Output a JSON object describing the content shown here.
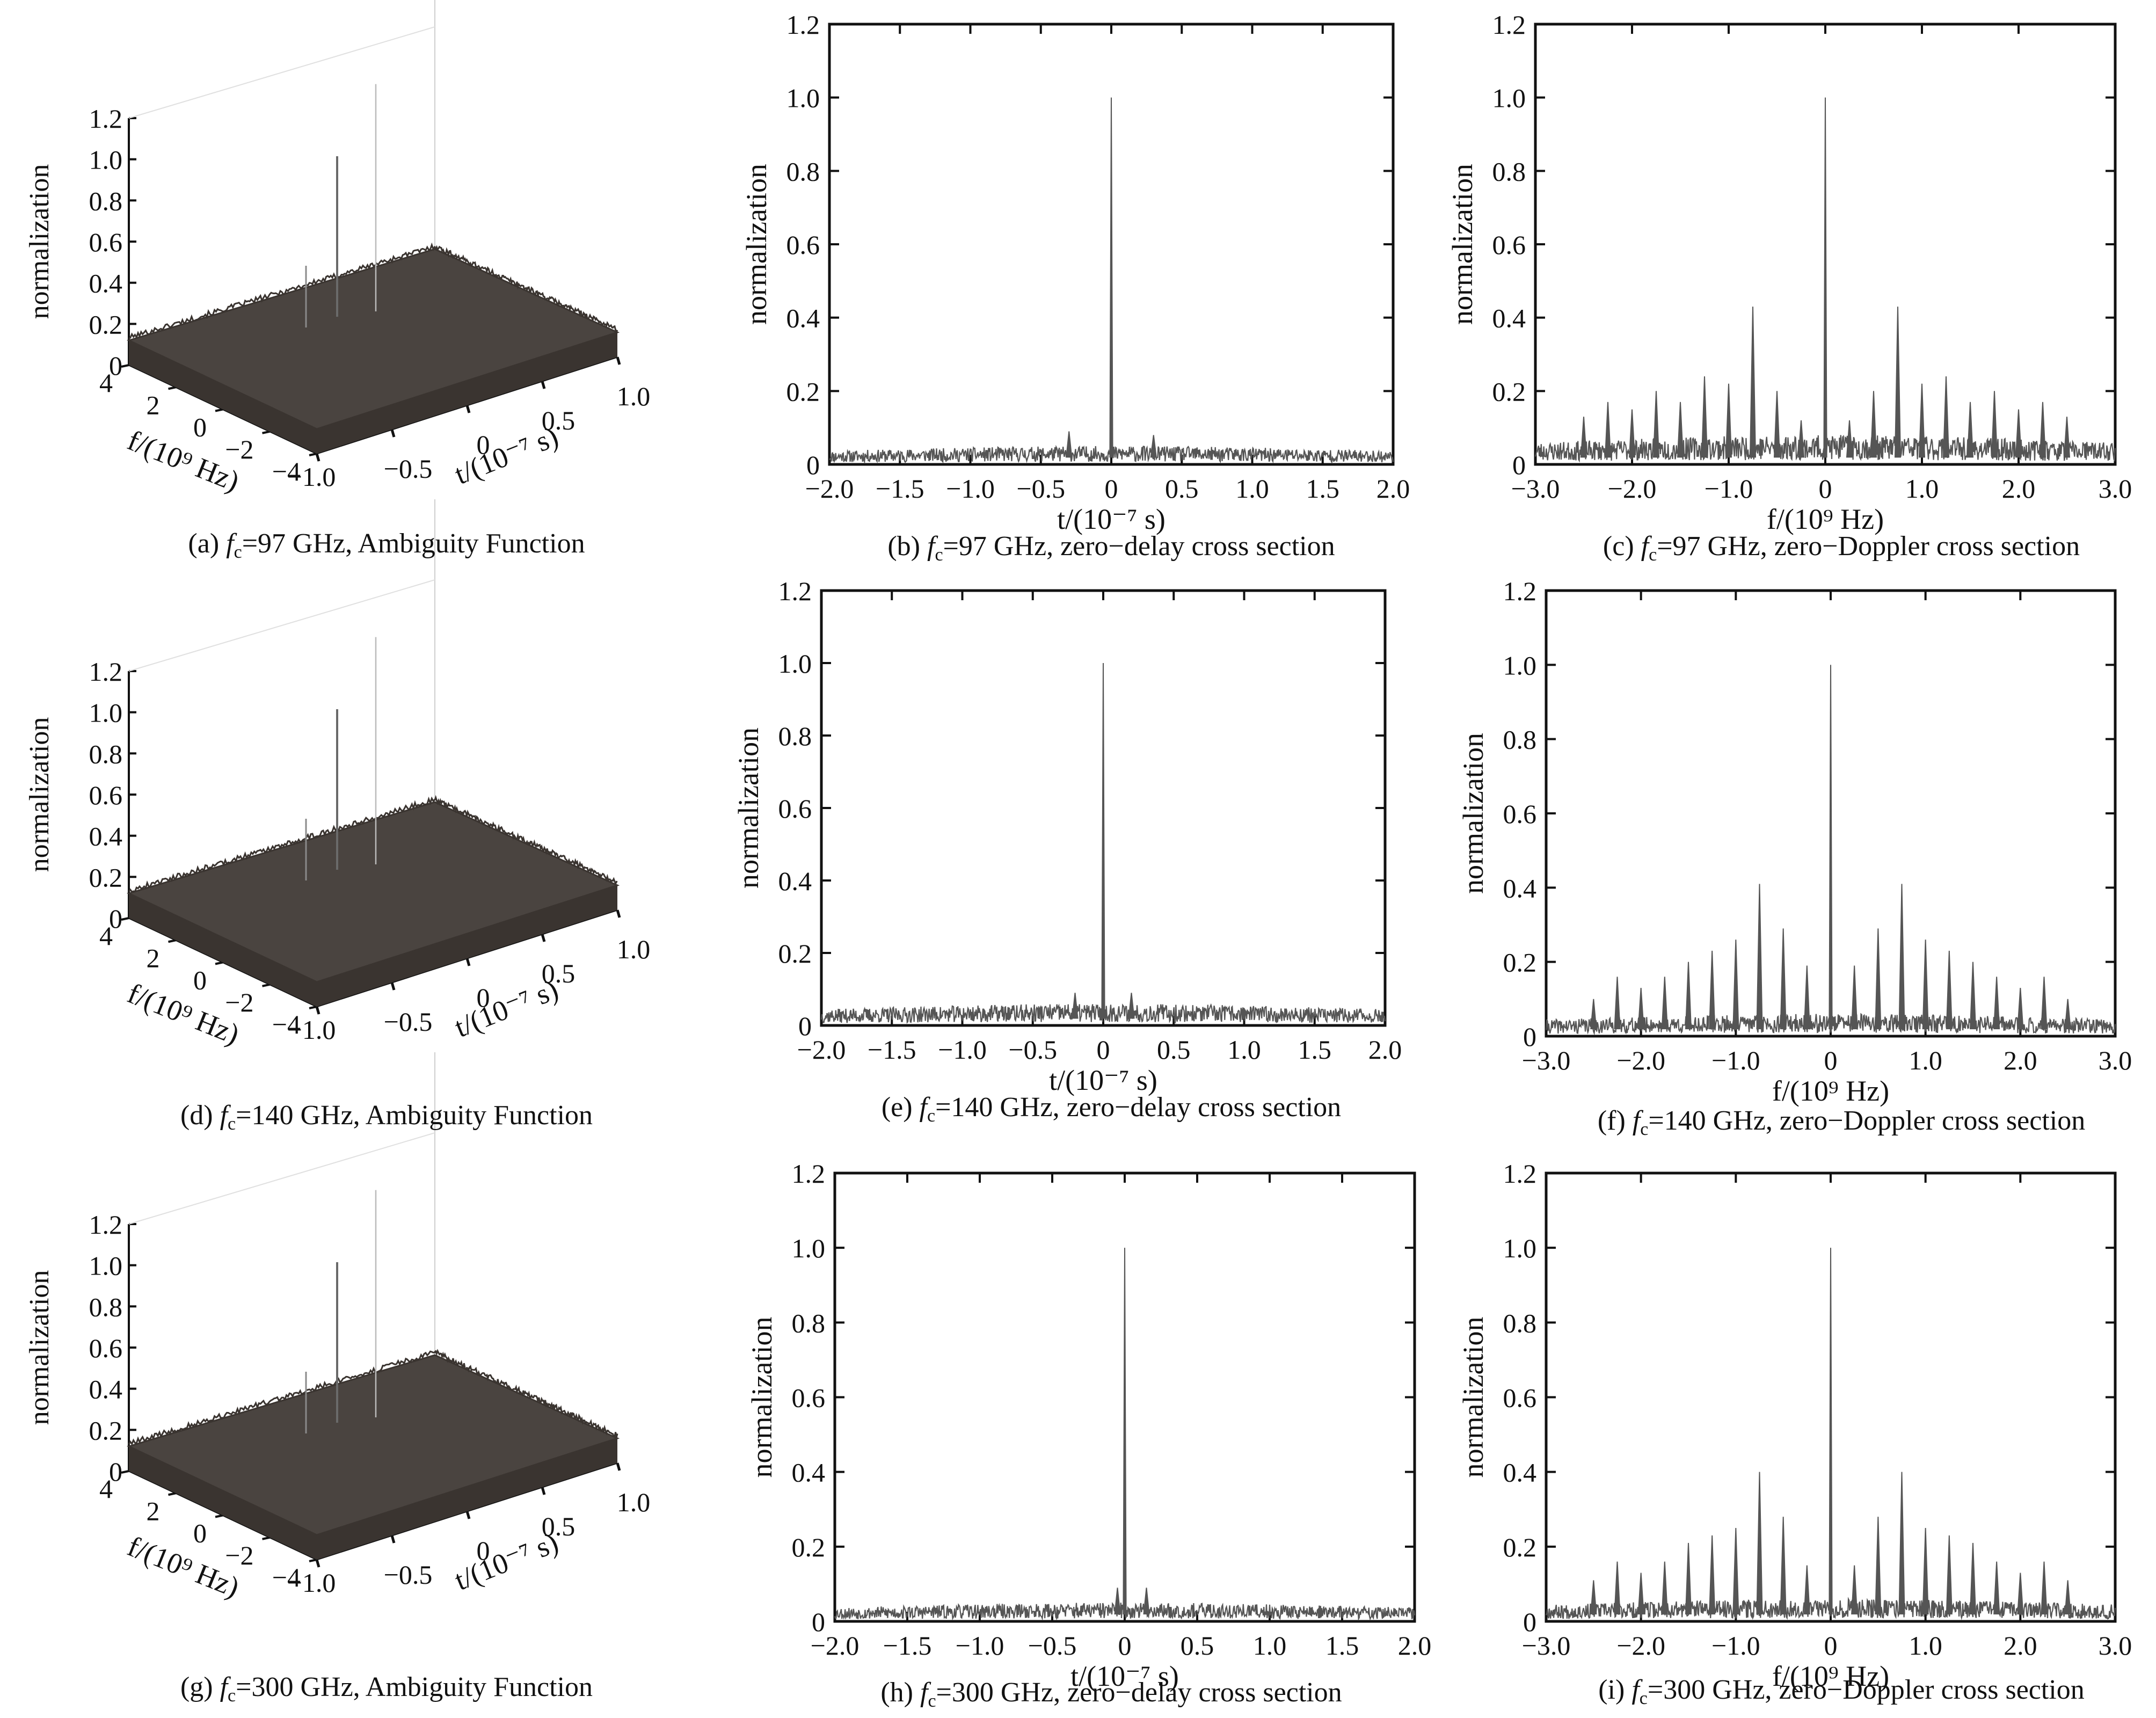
{
  "chart_data": [
    {
      "panel": "a",
      "type": "surface",
      "caption": {
        "prefix": "(a) ",
        "fc": "97 GHz",
        "suffix": ", Ambiguity Function"
      },
      "zlabel": "normalization",
      "zticks": [
        "0",
        "0.2",
        "0.4",
        "0.6",
        "0.8",
        "1.0",
        "1.2"
      ],
      "flabel": "f/(10⁹ Hz)",
      "fticks": [
        "4",
        "2",
        "0",
        "−2",
        "−4"
      ],
      "tlabel": "t/(10⁻⁷ s)",
      "tticks": [
        "−1.0",
        "−0.5",
        "0",
        "0.5",
        "1.0"
      ],
      "zlim": [
        0,
        1.2
      ],
      "peak": 1.0,
      "secondary_peaks": [
        0.78,
        0.3
      ],
      "noise_floor": 0.12
    },
    {
      "panel": "b",
      "type": "line",
      "caption": {
        "prefix": "(b) ",
        "fc": "97 GHz",
        "suffix": ", zero−delay cross section"
      },
      "xlabel": "t/(10⁻⁷ s)",
      "ylabel": "normalization",
      "xlim": [
        -2.0,
        2.0
      ],
      "ylim": [
        0,
        1.2
      ],
      "xticks": [
        "−2.0",
        "−1.5",
        "−1.0",
        "−0.5",
        "0",
        "0.5",
        "1.0",
        "1.5",
        "2.0"
      ],
      "yticks": [
        "0",
        "0.2",
        "0.4",
        "0.6",
        "0.8",
        "1.0",
        "1.2"
      ],
      "peaks": [
        {
          "x": 0,
          "y": 1.0
        },
        {
          "x": -0.3,
          "y": 0.09
        },
        {
          "x": 0.3,
          "y": 0.08
        }
      ],
      "noise_floor": 0.05
    },
    {
      "panel": "c",
      "type": "line",
      "caption": {
        "prefix": "(c) ",
        "fc": "97 GHz",
        "suffix": ", zero−Doppler cross section"
      },
      "xlabel": "f/(10⁹ Hz)",
      "ylabel": "normalization",
      "xlim": [
        -3.0,
        3.0
      ],
      "ylim": [
        0,
        1.2
      ],
      "xticks": [
        "−3.0",
        "−2.0",
        "−1.0",
        "0",
        "1.0",
        "2.0",
        "3.0"
      ],
      "yticks": [
        "0",
        "0.2",
        "0.4",
        "0.6",
        "0.8",
        "1.0",
        "1.2"
      ],
      "peaks": [
        {
          "x": 0,
          "y": 1.0
        },
        {
          "x": -0.75,
          "y": 0.43
        },
        {
          "x": 0.75,
          "y": 0.43
        },
        {
          "x": -1.25,
          "y": 0.24
        },
        {
          "x": 1.25,
          "y": 0.24
        },
        {
          "x": -1.0,
          "y": 0.22
        },
        {
          "x": 1.0,
          "y": 0.22
        },
        {
          "x": -0.5,
          "y": 0.2
        },
        {
          "x": 0.5,
          "y": 0.2
        },
        {
          "x": -1.75,
          "y": 0.2
        },
        {
          "x": 1.75,
          "y": 0.2
        },
        {
          "x": -2.25,
          "y": 0.17
        },
        {
          "x": 2.25,
          "y": 0.17
        },
        {
          "x": -1.5,
          "y": 0.17
        },
        {
          "x": 1.5,
          "y": 0.17
        },
        {
          "x": -2.0,
          "y": 0.15
        },
        {
          "x": 2.0,
          "y": 0.15
        },
        {
          "x": -2.5,
          "y": 0.13
        },
        {
          "x": 2.5,
          "y": 0.13
        },
        {
          "x": -0.25,
          "y": 0.12
        },
        {
          "x": 0.25,
          "y": 0.12
        }
      ],
      "noise_floor": 0.08
    },
    {
      "panel": "d",
      "type": "surface",
      "caption": {
        "prefix": "(d) ",
        "fc": "140 GHz",
        "suffix": ", Ambiguity Function"
      },
      "zlabel": "normalization",
      "zticks": [
        "0",
        "0.2",
        "0.4",
        "0.6",
        "0.8",
        "1.0",
        "1.2"
      ],
      "flabel": "f/(10⁹ Hz)",
      "fticks": [
        "4",
        "2",
        "0",
        "−2",
        "−4"
      ],
      "tlabel": "t/(10⁻⁷ s)",
      "tticks": [
        "−1.0",
        "−0.5",
        "0",
        "0.5",
        "1.0"
      ],
      "zlim": [
        0,
        1.2
      ],
      "peak": 1.0,
      "secondary_peaks": [
        0.78,
        0.3
      ],
      "noise_floor": 0.12
    },
    {
      "panel": "e",
      "type": "line",
      "caption": {
        "prefix": "(e) ",
        "fc": "140 GHz",
        "suffix": ", zero−delay cross section"
      },
      "xlabel": "t/(10⁻⁷ s)",
      "ylabel": "normalization",
      "xlim": [
        -2.0,
        2.0
      ],
      "ylim": [
        0,
        1.2
      ],
      "xticks": [
        "−2.0",
        "−1.5",
        "−1.0",
        "−0.5",
        "0",
        "0.5",
        "1.0",
        "1.5",
        "2.0"
      ],
      "yticks": [
        "0",
        "0.2",
        "0.4",
        "0.6",
        "0.8",
        "1.0",
        "1.2"
      ],
      "peaks": [
        {
          "x": 0,
          "y": 1.0
        },
        {
          "x": -0.2,
          "y": 0.09
        },
        {
          "x": 0.2,
          "y": 0.09
        }
      ],
      "noise_floor": 0.06
    },
    {
      "panel": "f",
      "type": "line",
      "caption": {
        "prefix": "(f) ",
        "fc": "140 GHz",
        "suffix": ", zero−Doppler cross section"
      },
      "xlabel": "f/(10⁹ Hz)",
      "ylabel": "normalization",
      "xlim": [
        -3.0,
        3.0
      ],
      "ylim": [
        0,
        1.2
      ],
      "xticks": [
        "−3.0",
        "−2.0",
        "−1.0",
        "0",
        "1.0",
        "2.0",
        "3.0"
      ],
      "yticks": [
        "0",
        "0.2",
        "0.4",
        "0.6",
        "0.8",
        "1.0",
        "1.2"
      ],
      "peaks": [
        {
          "x": 0,
          "y": 1.0
        },
        {
          "x": -0.75,
          "y": 0.41
        },
        {
          "x": 0.75,
          "y": 0.41
        },
        {
          "x": -0.5,
          "y": 0.29
        },
        {
          "x": 0.5,
          "y": 0.29
        },
        {
          "x": -1.0,
          "y": 0.26
        },
        {
          "x": 1.0,
          "y": 0.26
        },
        {
          "x": -1.25,
          "y": 0.23
        },
        {
          "x": 1.25,
          "y": 0.23
        },
        {
          "x": -1.5,
          "y": 0.2
        },
        {
          "x": 1.5,
          "y": 0.2
        },
        {
          "x": -0.25,
          "y": 0.19
        },
        {
          "x": 0.25,
          "y": 0.19
        },
        {
          "x": -1.75,
          "y": 0.16
        },
        {
          "x": 1.75,
          "y": 0.16
        },
        {
          "x": -2.25,
          "y": 0.16
        },
        {
          "x": 2.25,
          "y": 0.16
        },
        {
          "x": -2.0,
          "y": 0.13
        },
        {
          "x": 2.0,
          "y": 0.13
        },
        {
          "x": -2.5,
          "y": 0.1
        },
        {
          "x": 2.5,
          "y": 0.1
        }
      ],
      "noise_floor": 0.06
    },
    {
      "panel": "g",
      "type": "surface",
      "caption": {
        "prefix": "(g) ",
        "fc": "300 GHz",
        "suffix": ", Ambiguity Function"
      },
      "zlabel": "normalization",
      "zticks": [
        "0",
        "0.2",
        "0.4",
        "0.6",
        "0.8",
        "1.0",
        "1.2"
      ],
      "flabel": "f/(10⁹ Hz)",
      "fticks": [
        "4",
        "2",
        "0",
        "−2",
        "−4"
      ],
      "tlabel": "t/(10⁻⁷ s)",
      "tticks": [
        "−1.0",
        "−0.5",
        "0",
        "0.5",
        "1.0"
      ],
      "zlim": [
        0,
        1.2
      ],
      "peak": 1.0,
      "secondary_peaks": [
        0.78,
        0.3
      ],
      "noise_floor": 0.12
    },
    {
      "panel": "h",
      "type": "line",
      "caption": {
        "prefix": "(h) ",
        "fc": "300 GHz",
        "suffix": ", zero−delay cross section"
      },
      "xlabel": "t/(10⁻⁷ s)",
      "ylabel": "normalization",
      "xlim": [
        -2.0,
        2.0
      ],
      "ylim": [
        0,
        1.2
      ],
      "xticks": [
        "−2.0",
        "−1.5",
        "−1.0",
        "−0.5",
        "0",
        "0.5",
        "1.0",
        "1.5",
        "2.0"
      ],
      "yticks": [
        "0",
        "0.2",
        "0.4",
        "0.6",
        "0.8",
        "1.0",
        "1.2"
      ],
      "peaks": [
        {
          "x": 0,
          "y": 1.0
        },
        {
          "x": -0.05,
          "y": 0.09
        },
        {
          "x": 0.15,
          "y": 0.09
        }
      ],
      "noise_floor": 0.05
    },
    {
      "panel": "i",
      "type": "line",
      "caption": {
        "prefix": "(i) ",
        "fc": "300 GHz",
        "suffix": ", zero−Doppler cross section"
      },
      "xlabel": "f/(10⁹ Hz)",
      "ylabel": "normalization",
      "xlim": [
        -3.0,
        3.0
      ],
      "ylim": [
        0,
        1.2
      ],
      "xticks": [
        "−3.0",
        "−2.0",
        "−1.0",
        "0",
        "1.0",
        "2.0",
        "3.0"
      ],
      "yticks": [
        "0",
        "0.2",
        "0.4",
        "0.6",
        "0.8",
        "1.0",
        "1.2"
      ],
      "peaks": [
        {
          "x": 0,
          "y": 1.0
        },
        {
          "x": -0.75,
          "y": 0.4
        },
        {
          "x": 0.75,
          "y": 0.4
        },
        {
          "x": -0.5,
          "y": 0.28
        },
        {
          "x": 0.5,
          "y": 0.28
        },
        {
          "x": -1.0,
          "y": 0.25
        },
        {
          "x": 1.0,
          "y": 0.25
        },
        {
          "x": -1.25,
          "y": 0.23
        },
        {
          "x": 1.25,
          "y": 0.23
        },
        {
          "x": -1.5,
          "y": 0.21
        },
        {
          "x": 1.5,
          "y": 0.21
        },
        {
          "x": -1.75,
          "y": 0.16
        },
        {
          "x": 1.75,
          "y": 0.16
        },
        {
          "x": -2.25,
          "y": 0.16
        },
        {
          "x": 2.25,
          "y": 0.16
        },
        {
          "x": -0.25,
          "y": 0.15
        },
        {
          "x": 0.25,
          "y": 0.15
        },
        {
          "x": -2.0,
          "y": 0.13
        },
        {
          "x": 2.0,
          "y": 0.13
        },
        {
          "x": -2.5,
          "y": 0.11
        },
        {
          "x": 2.5,
          "y": 0.11
        }
      ],
      "noise_floor": 0.06
    }
  ],
  "colors": {
    "trace": "#555555",
    "surface": "#4a4440",
    "surface_edge": "#3a3430",
    "axis": "#111111"
  }
}
